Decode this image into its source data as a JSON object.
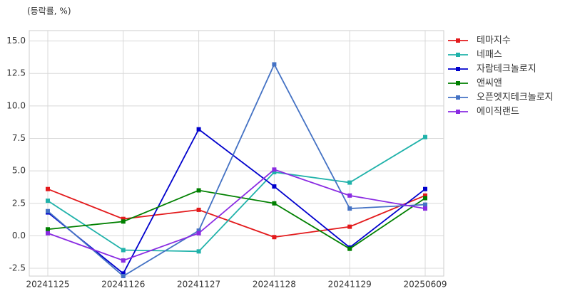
{
  "chart_data": {
    "type": "line",
    "y_label": "(등락률, %)",
    "categories": [
      "20241125",
      "20241126",
      "20241127",
      "20241128",
      "20241129",
      "20250609"
    ],
    "series": [
      {
        "name": "테마지수",
        "color": "#e31a1c",
        "values": [
          3.6,
          1.3,
          2.0,
          -0.1,
          0.7,
          3.1
        ]
      },
      {
        "name": "네패스",
        "color": "#20b2aa",
        "values": [
          2.7,
          -1.1,
          -1.2,
          4.9,
          4.1,
          7.6
        ]
      },
      {
        "name": "자람테크놀로지",
        "color": "#0000cd",
        "values": [
          1.8,
          -2.9,
          8.2,
          3.8,
          -0.9,
          3.6
        ]
      },
      {
        "name": "앤씨앤",
        "color": "#008000",
        "values": [
          0.5,
          1.1,
          3.5,
          2.5,
          -1.0,
          2.9
        ]
      },
      {
        "name": "오픈엣지테크놀로지",
        "color": "#4472c4",
        "values": [
          1.9,
          -3.1,
          0.4,
          13.2,
          2.1,
          2.4
        ]
      },
      {
        "name": "에이직랜드",
        "color": "#8a2be2",
        "values": [
          0.2,
          -1.9,
          0.2,
          5.1,
          3.1,
          2.1
        ]
      }
    ],
    "ylim": [
      -3.1,
      15.8
    ],
    "yticks": [
      -2.5,
      {
        "value": 0,
        "label": "0.0"
      },
      2.5,
      {
        "value": 5,
        "label": "5.0"
      },
      7.5,
      {
        "value": 10,
        "label": "10.0"
      },
      12.5,
      {
        "value": 15,
        "label": "15.0"
      }
    ],
    "grid": true
  }
}
